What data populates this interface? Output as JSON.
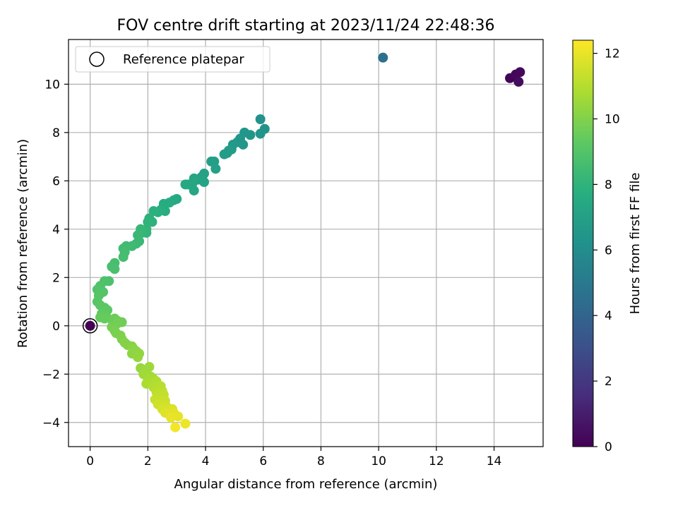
{
  "chart_data": {
    "type": "scatter",
    "title": "FOV centre drift starting at 2023/11/24 22:48:36",
    "xlabel": "Angular distance from reference (arcmin)",
    "ylabel": "Rotation from reference (arcmin)",
    "xlim": [
      -0.75,
      15.7
    ],
    "ylim": [
      -5.0,
      11.85
    ],
    "xticks": [
      0,
      2,
      4,
      6,
      8,
      10,
      12,
      14
    ],
    "yticks": [
      -4,
      -2,
      0,
      2,
      4,
      6,
      8,
      10
    ],
    "grid": true,
    "legend": {
      "placement": "top-left",
      "entries": [
        "Reference platepar"
      ]
    },
    "colorbar": {
      "label": "Hours from first FF file",
      "range": [
        0,
        12.4
      ],
      "ticks": [
        0,
        2,
        4,
        6,
        8,
        10,
        12
      ],
      "colormap": "viridis"
    },
    "reference_point": {
      "x": 0,
      "y": 0,
      "c": 0
    },
    "series": [
      {
        "comment_free": true,
        "points": [
          [
            14.55,
            10.25,
            0.1
          ],
          [
            14.75,
            10.4,
            0.2
          ],
          [
            14.9,
            10.5,
            0.3
          ],
          [
            14.85,
            10.1,
            0.4
          ],
          [
            10.15,
            11.1,
            4.6
          ],
          [
            5.9,
            8.55,
            6.3
          ],
          [
            6.05,
            8.15,
            6.35
          ],
          [
            5.9,
            7.95,
            6.4
          ],
          [
            5.55,
            7.9,
            6.45
          ],
          [
            5.35,
            8.0,
            6.5
          ],
          [
            5.2,
            7.75,
            6.55
          ],
          [
            5.3,
            7.5,
            6.6
          ],
          [
            5.1,
            7.6,
            6.65
          ],
          [
            4.95,
            7.5,
            6.7
          ],
          [
            4.9,
            7.3,
            6.75
          ],
          [
            4.75,
            7.15,
            6.8
          ],
          [
            4.8,
            7.25,
            6.85
          ],
          [
            4.65,
            7.1,
            6.9
          ],
          [
            4.3,
            6.8,
            6.95
          ],
          [
            4.2,
            6.8,
            7.0
          ],
          [
            4.35,
            6.5,
            7.05
          ],
          [
            3.95,
            6.3,
            7.1
          ],
          [
            3.85,
            6.15,
            7.15
          ],
          [
            3.95,
            5.95,
            7.2
          ],
          [
            3.75,
            6.05,
            7.25
          ],
          [
            3.6,
            6.1,
            7.3
          ],
          [
            3.55,
            5.9,
            7.35
          ],
          [
            3.6,
            5.6,
            7.4
          ],
          [
            3.4,
            5.85,
            7.45
          ],
          [
            3.3,
            5.85,
            7.5
          ],
          [
            3.0,
            5.25,
            7.55
          ],
          [
            2.9,
            5.2,
            7.6
          ],
          [
            2.75,
            5.1,
            7.65
          ],
          [
            2.55,
            5.05,
            7.7
          ],
          [
            2.6,
            4.75,
            7.75
          ],
          [
            2.45,
            4.8,
            7.8
          ],
          [
            2.35,
            4.7,
            7.85
          ],
          [
            2.2,
            4.75,
            7.9
          ],
          [
            2.05,
            4.45,
            7.95
          ],
          [
            2.15,
            4.3,
            8.0
          ],
          [
            2.0,
            4.3,
            8.05
          ],
          [
            1.95,
            4.0,
            8.1
          ],
          [
            1.95,
            3.85,
            8.15
          ],
          [
            1.8,
            3.85,
            8.2
          ],
          [
            1.75,
            4.0,
            8.25
          ],
          [
            1.65,
            3.75,
            8.3
          ],
          [
            1.7,
            3.5,
            8.35
          ],
          [
            1.6,
            3.4,
            8.4
          ],
          [
            1.45,
            3.3,
            8.45
          ],
          [
            1.25,
            3.3,
            8.5
          ],
          [
            1.15,
            3.2,
            8.55
          ],
          [
            1.2,
            3.05,
            8.6
          ],
          [
            1.15,
            2.85,
            8.65
          ],
          [
            0.85,
            2.6,
            8.7
          ],
          [
            0.75,
            2.45,
            8.75
          ],
          [
            0.85,
            2.35,
            8.8
          ],
          [
            0.65,
            1.85,
            8.85
          ],
          [
            0.5,
            1.85,
            8.9
          ],
          [
            0.35,
            1.65,
            8.95
          ],
          [
            0.25,
            1.5,
            9.0
          ],
          [
            0.45,
            1.4,
            9.05
          ],
          [
            0.3,
            1.25,
            9.1
          ],
          [
            0.25,
            1.0,
            9.15
          ],
          [
            0.35,
            0.85,
            9.2
          ],
          [
            0.5,
            0.75,
            9.25
          ],
          [
            0.6,
            0.65,
            9.3
          ],
          [
            0.4,
            0.5,
            9.35
          ],
          [
            0.55,
            0.4,
            9.4
          ],
          [
            0.35,
            0.35,
            9.45
          ],
          [
            0.5,
            0.3,
            9.5
          ],
          [
            0.75,
            0.25,
            9.55
          ],
          [
            0.85,
            0.3,
            9.6
          ],
          [
            0.95,
            0.2,
            9.65
          ],
          [
            1.1,
            0.15,
            9.7
          ],
          [
            0.95,
            0.1,
            9.75
          ],
          [
            0.75,
            -0.05,
            9.8
          ],
          [
            0.85,
            -0.2,
            9.85
          ],
          [
            0.9,
            -0.3,
            9.9
          ],
          [
            1.05,
            -0.4,
            9.95
          ],
          [
            1.1,
            -0.55,
            10.0
          ],
          [
            1.2,
            -0.7,
            10.05
          ],
          [
            1.3,
            -0.8,
            10.1
          ],
          [
            1.45,
            -0.85,
            10.15
          ],
          [
            1.5,
            -0.95,
            10.2
          ],
          [
            1.6,
            -1.05,
            10.25
          ],
          [
            1.45,
            -1.15,
            10.3
          ],
          [
            1.7,
            -1.15,
            10.35
          ],
          [
            1.65,
            -1.3,
            10.4
          ],
          [
            1.75,
            -1.75,
            10.5
          ],
          [
            1.95,
            -1.85,
            10.55
          ],
          [
            2.05,
            -1.7,
            10.6
          ],
          [
            1.85,
            -2.0,
            10.65
          ],
          [
            2.1,
            -2.1,
            10.7
          ],
          [
            2.0,
            -2.25,
            10.75
          ],
          [
            2.2,
            -2.2,
            10.8
          ],
          [
            1.95,
            -2.4,
            10.85
          ],
          [
            2.15,
            -2.4,
            10.9
          ],
          [
            2.3,
            -2.3,
            10.95
          ],
          [
            2.2,
            -2.55,
            11.0
          ],
          [
            2.35,
            -2.55,
            11.05
          ],
          [
            2.45,
            -2.5,
            11.1
          ],
          [
            2.5,
            -2.7,
            11.15
          ],
          [
            2.3,
            -2.75,
            11.2
          ],
          [
            2.4,
            -2.85,
            11.25
          ],
          [
            2.55,
            -2.85,
            11.3
          ],
          [
            2.25,
            -3.05,
            11.35
          ],
          [
            2.45,
            -3.1,
            11.4
          ],
          [
            2.6,
            -3.1,
            11.45
          ],
          [
            2.35,
            -3.25,
            11.5
          ],
          [
            2.55,
            -3.3,
            11.55
          ],
          [
            2.65,
            -3.35,
            11.6
          ],
          [
            2.5,
            -3.45,
            11.65
          ],
          [
            2.7,
            -3.5,
            11.7
          ],
          [
            2.85,
            -3.45,
            11.75
          ],
          [
            2.6,
            -3.6,
            11.8
          ],
          [
            2.75,
            -3.65,
            11.85
          ],
          [
            2.9,
            -3.6,
            11.9
          ],
          [
            3.05,
            -3.75,
            11.95
          ],
          [
            2.8,
            -3.8,
            12.0
          ],
          [
            3.3,
            -4.05,
            12.1
          ],
          [
            2.95,
            -4.2,
            12.2
          ]
        ]
      }
    ]
  }
}
